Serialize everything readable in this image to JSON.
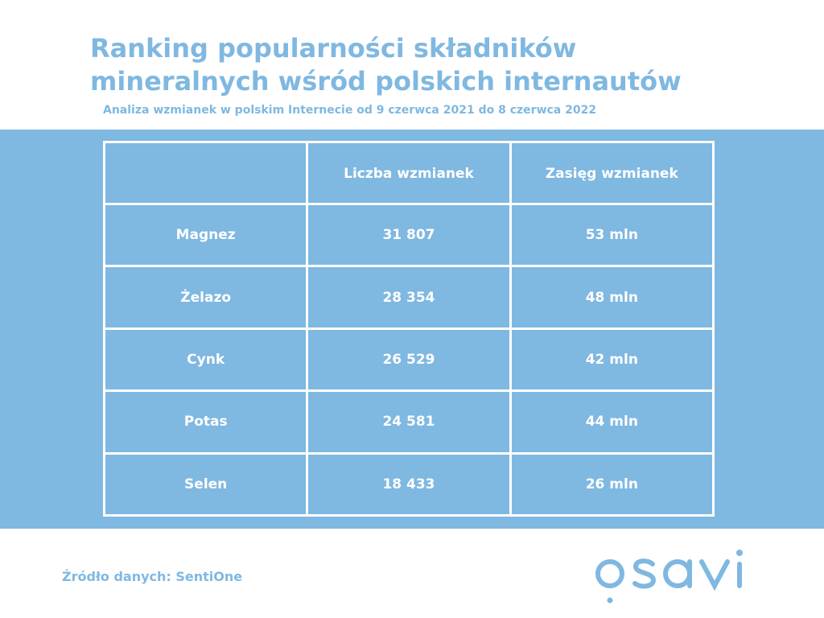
{
  "header": {
    "title_line1": "Ranking popularności składników",
    "title_line2": "mineralnych wśród polskich internautów",
    "subtitle": "Analiza wzmianek w polskim Internecie od 9 czerwca 2021 do 8 czerwca 2022"
  },
  "table": {
    "columns": [
      "",
      "Liczba wzmianek",
      "Zasięg wzmianek"
    ],
    "rows": [
      {
        "name": "Magnez",
        "mentions": "31 807",
        "reach": "53 mln"
      },
      {
        "name": "Żelazo",
        "mentions": "28 354",
        "reach": "48 mln"
      },
      {
        "name": "Cynk",
        "mentions": "26 529",
        "reach": "42 mln"
      },
      {
        "name": "Potas",
        "mentions": "24 581",
        "reach": "44 mln"
      },
      {
        "name": "Selen",
        "mentions": "18 433",
        "reach": "26 mln"
      }
    ]
  },
  "footer": {
    "source": "Źródło danych: SentiOne",
    "logo_text": "osavi"
  },
  "colors": {
    "accent": "#7fb8e1",
    "text_on_band": "#ffffff",
    "background": "#ffffff"
  }
}
